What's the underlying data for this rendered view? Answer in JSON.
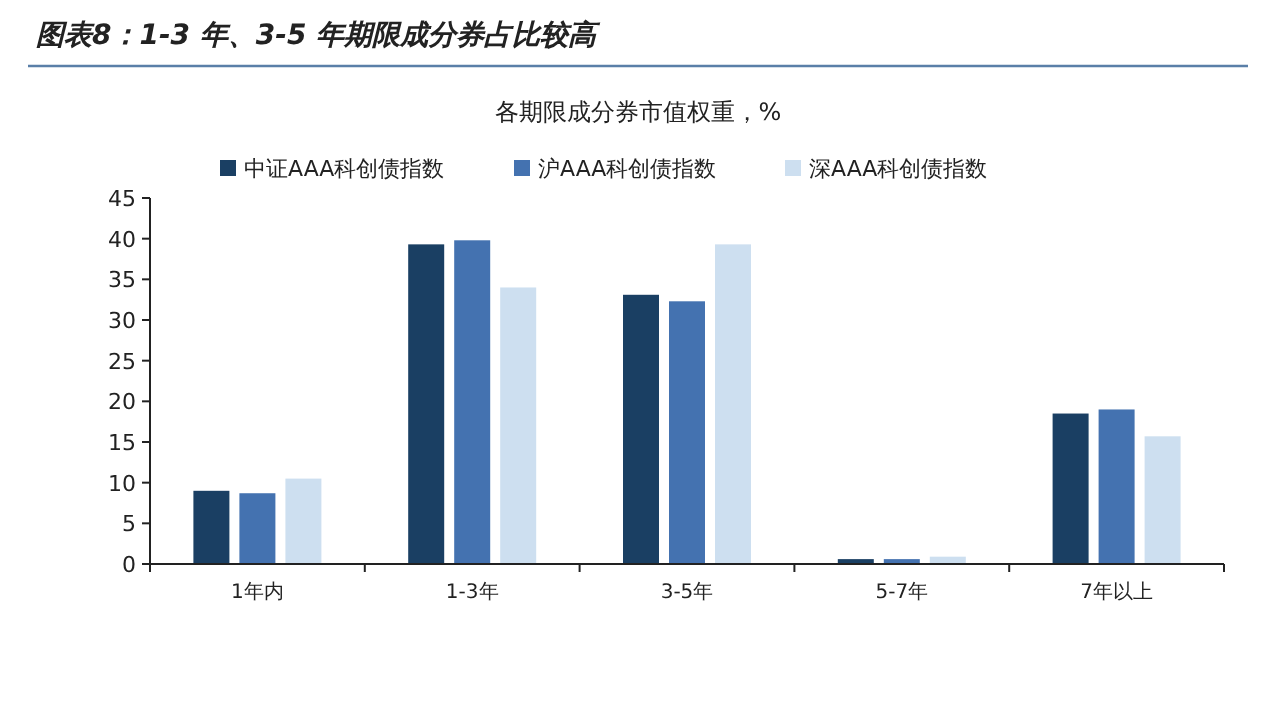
{
  "chart_data": {
    "type": "bar",
    "title": "图表8：1-3 年、3-5 年期限成分券占比较高",
    "subtitle": "各期限成分券市值权重，%",
    "categories": [
      "1年内",
      "1-3年",
      "3-5年",
      "5-7年",
      "7年以上"
    ],
    "series": [
      {
        "name": "中证AAA科创债指数",
        "color": "#1a3f63",
        "values": [
          9.0,
          39.3,
          33.1,
          0.6,
          18.5
        ]
      },
      {
        "name": "沪AAA科创债指数",
        "color": "#4472b0",
        "values": [
          8.7,
          39.8,
          32.3,
          0.6,
          19.0
        ]
      },
      {
        "name": "深AAA科创债指数",
        "color": "#cddff0",
        "values": [
          10.5,
          34.0,
          39.3,
          0.9,
          15.7
        ]
      }
    ],
    "ylim": [
      0,
      45
    ],
    "yticks": [
      0,
      5,
      10,
      15,
      20,
      25,
      30,
      35,
      40,
      45
    ],
    "legend": "top"
  }
}
